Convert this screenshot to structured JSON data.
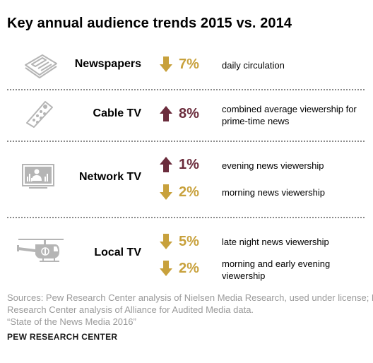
{
  "title": "Key annual audience trends 2015 vs. 2014",
  "colors": {
    "down": "#c8a13c",
    "up": "#6b2c3c",
    "icon": "#b5b5b5",
    "divider": "#8a8a8a",
    "source": "#9a9a9a"
  },
  "chart_data": {
    "type": "table",
    "title": "Key annual audience trends 2015 vs. 2014",
    "sections": [
      {
        "name": "Newspapers",
        "icon": "newspaper-icon",
        "metrics": [
          {
            "direction": "down",
            "value": "7%",
            "change_pct": -7,
            "description": "daily circulation"
          }
        ]
      },
      {
        "name": "Cable TV",
        "icon": "remote-control-icon",
        "metrics": [
          {
            "direction": "up",
            "value": "8%",
            "change_pct": 8,
            "description": "combined average viewership for prime-time news"
          }
        ]
      },
      {
        "name": "Network TV",
        "icon": "monitor-icon",
        "metrics": [
          {
            "direction": "up",
            "value": "1%",
            "change_pct": 1,
            "description": "evening news viewership"
          },
          {
            "direction": "down",
            "value": "2%",
            "change_pct": -2,
            "description": "morning news viewership"
          }
        ]
      },
      {
        "name": "Local TV",
        "icon": "helicopter-icon",
        "metrics": [
          {
            "direction": "down",
            "value": "5%",
            "change_pct": -5,
            "description": "late night news viewership"
          },
          {
            "direction": "down",
            "value": "2%",
            "change_pct": -2,
            "description": "morning and early evening viewership"
          }
        ]
      }
    ]
  },
  "source": {
    "lines": [
      "Sources: Pew Research Center analysis of Nielsen Media Research, used under license; Pew",
      "Research Center analysis of Alliance for Audited Media data.",
      "“State of the News Media 2016”"
    ]
  },
  "credit": "PEW RESEARCH CENTER"
}
